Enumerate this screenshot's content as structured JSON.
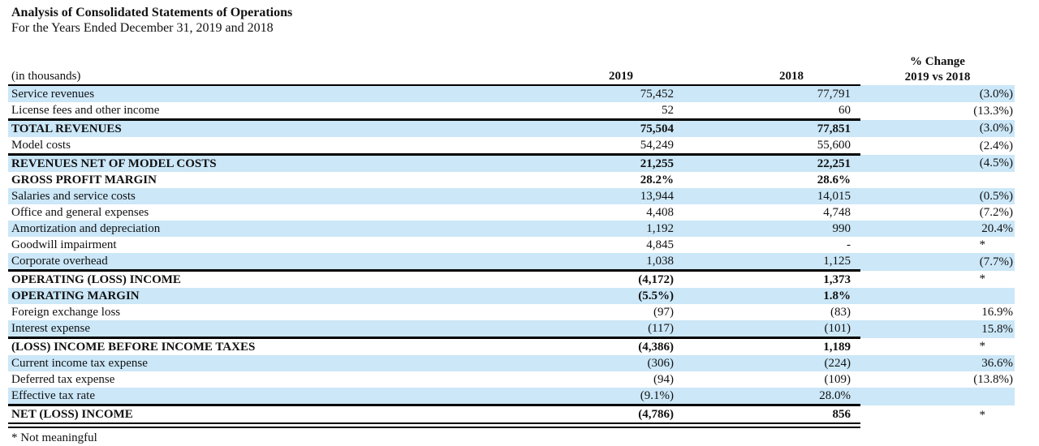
{
  "title": "Analysis of Consolidated Statements of Operations",
  "subtitle": "For the Years Ended December 31, 2019 and 2018",
  "colors": {
    "row_shading": "#cbe7f8"
  },
  "table": {
    "headers": {
      "unit_label": "(in thousands)",
      "col_2019": "2019",
      "col_2018": "2018",
      "pct_change_line1": "% Change",
      "pct_change_line2": "2019 vs 2018"
    },
    "rows": [
      {
        "label": "Service revenues",
        "v2019": "75,452",
        "v2018": "77,791",
        "pct": "(3.0%)",
        "bold": false,
        "shaded": true,
        "rule_top": false,
        "rule_double_bottom": false
      },
      {
        "label": "License fees and other income",
        "v2019": "52",
        "v2018": "60",
        "pct": "(13.3%)",
        "bold": false,
        "shaded": false,
        "rule_top": false,
        "rule_double_bottom": false
      },
      {
        "label": "TOTAL REVENUES",
        "v2019": "75,504",
        "v2018": "77,851",
        "pct": "(3.0%)",
        "bold": true,
        "shaded": true,
        "rule_top": true,
        "rule_double_bottom": false
      },
      {
        "label": "Model costs",
        "v2019": "54,249",
        "v2018": "55,600",
        "pct": "(2.4%)",
        "bold": false,
        "shaded": false,
        "rule_top": false,
        "rule_double_bottom": false
      },
      {
        "label": "REVENUES NET OF MODEL COSTS",
        "v2019": "21,255",
        "v2018": "22,251",
        "pct": "(4.5%)",
        "bold": true,
        "shaded": true,
        "rule_top": true,
        "rule_double_bottom": false
      },
      {
        "label": "GROSS PROFIT MARGIN",
        "v2019": "28.2%",
        "v2018": "28.6%",
        "pct": "",
        "bold": true,
        "shaded": false,
        "rule_top": false,
        "rule_double_bottom": false
      },
      {
        "label": "Salaries and service costs",
        "v2019": "13,944",
        "v2018": "14,015",
        "pct": "(0.5%)",
        "bold": false,
        "shaded": true,
        "rule_top": false,
        "rule_double_bottom": false
      },
      {
        "label": "Office and general expenses",
        "v2019": "4,408",
        "v2018": "4,748",
        "pct": "(7.2%)",
        "bold": false,
        "shaded": false,
        "rule_top": false,
        "rule_double_bottom": false
      },
      {
        "label": "Amortization and depreciation",
        "v2019": "1,192",
        "v2018": "990",
        "pct": "20.4%",
        "bold": false,
        "shaded": true,
        "rule_top": false,
        "rule_double_bottom": false
      },
      {
        "label": "Goodwill impairment",
        "v2019": "4,845",
        "v2018": "-",
        "pct": "*",
        "bold": false,
        "shaded": false,
        "rule_top": false,
        "rule_double_bottom": false
      },
      {
        "label": "Corporate overhead",
        "v2019": "1,038",
        "v2018": "1,125",
        "pct": "(7.7%)",
        "bold": false,
        "shaded": true,
        "rule_top": false,
        "rule_double_bottom": false
      },
      {
        "label": "OPERATING (LOSS) INCOME",
        "v2019": "(4,172)",
        "v2018": "1,373",
        "pct": "*",
        "bold": true,
        "shaded": false,
        "rule_top": true,
        "rule_double_bottom": false
      },
      {
        "label": "OPERATING MARGIN",
        "v2019": "(5.5%)",
        "v2018": "1.8%",
        "pct": "",
        "bold": true,
        "shaded": true,
        "rule_top": false,
        "rule_double_bottom": false
      },
      {
        "label": "Foreign exchange loss",
        "v2019": "(97)",
        "v2018": "(83)",
        "pct": "16.9%",
        "bold": false,
        "shaded": false,
        "rule_top": false,
        "rule_double_bottom": false
      },
      {
        "label": "Interest expense",
        "v2019": "(117)",
        "v2018": "(101)",
        "pct": "15.8%",
        "bold": false,
        "shaded": true,
        "rule_top": false,
        "rule_double_bottom": false
      },
      {
        "label": "(LOSS) INCOME BEFORE INCOME TAXES",
        "v2019": "(4,386)",
        "v2018": "1,189",
        "pct": "*",
        "bold": true,
        "shaded": false,
        "rule_top": true,
        "rule_double_bottom": false
      },
      {
        "label": "Current income tax expense",
        "v2019": "(306)",
        "v2018": "(224)",
        "pct": "36.6%",
        "bold": false,
        "shaded": true,
        "rule_top": false,
        "rule_double_bottom": false
      },
      {
        "label": "Deferred tax expense",
        "v2019": "(94)",
        "v2018": "(109)",
        "pct": "(13.8%)",
        "bold": false,
        "shaded": false,
        "rule_top": false,
        "rule_double_bottom": false
      },
      {
        "label": "Effective tax rate",
        "v2019": "(9.1%)",
        "v2018": "28.0%",
        "pct": "",
        "bold": false,
        "shaded": true,
        "rule_top": false,
        "rule_double_bottom": false
      },
      {
        "label": "NET (LOSS) INCOME",
        "v2019": "(4,786)",
        "v2018": "856",
        "pct": "*",
        "bold": true,
        "shaded": false,
        "rule_top": true,
        "rule_double_bottom": true
      }
    ]
  },
  "footnote": "* Not meaningful"
}
